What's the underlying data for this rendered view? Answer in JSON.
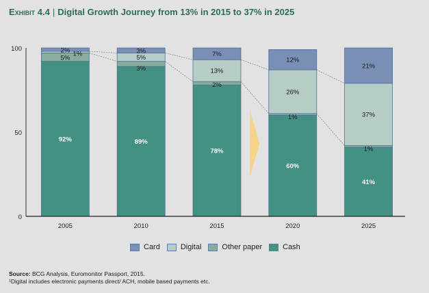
{
  "title": {
    "exhibit": "Exhibit 4.4",
    "separator": "|",
    "text": "Digital Growth Journey from 13% in 2015 to 37% in 2025"
  },
  "colors": {
    "Card": "#7a8fb5",
    "Digital": "#b6cdc5",
    "Other paper": "#88ad9c",
    "Cash": "#429182",
    "arrow": "#f5d389",
    "title": "#2c6e57"
  },
  "chart_data": {
    "type": "bar",
    "stacked": true,
    "title": "Digital Growth Journey from 13% in 2015 to 37% in 2025",
    "xlabel": "",
    "ylabel": "",
    "categories": [
      "2005",
      "2010",
      "2015",
      "2020",
      "2025"
    ],
    "ylim": [
      0,
      100
    ],
    "yticks": [
      0,
      50,
      100
    ],
    "series": [
      {
        "name": "Cash",
        "values": [
          92,
          89,
          78,
          60,
          41
        ],
        "labels": [
          "92%",
          "89%",
          "78%",
          "60%",
          "41%"
        ]
      },
      {
        "name": "Other paper",
        "values": [
          5,
          3,
          2,
          1,
          1
        ],
        "labels": [
          "5%",
          "3%",
          "2%",
          "1%",
          "1%"
        ]
      },
      {
        "name": "Digital",
        "values": [
          1,
          5,
          13,
          26,
          37
        ],
        "labels": [
          "1%",
          "5%",
          "13%",
          "26%",
          "37%"
        ]
      },
      {
        "name": "Card",
        "values": [
          2,
          3,
          7,
          12,
          21
        ],
        "labels": [
          "2%",
          "3%",
          "7%",
          "12%",
          "21%"
        ]
      }
    ],
    "legend": [
      "Card",
      "Digital",
      "Other paper",
      "Cash"
    ],
    "legend_position": "bottom",
    "grid": false,
    "annotations": [
      "dotted connector lines between Card and Digital boundaries",
      "arrow between 2015 and 2020"
    ]
  },
  "legend": [
    {
      "label": "Card"
    },
    {
      "label": "Digital"
    },
    {
      "label": "Other paper"
    },
    {
      "label": "Cash"
    }
  ],
  "footer": {
    "source_label": "Source:",
    "source_text": "BCG Analysis, Euromonitor Passport, 2015.",
    "footnote": "¹Digital includes electronic payments direct/ ACH, mobile based payments etc."
  }
}
